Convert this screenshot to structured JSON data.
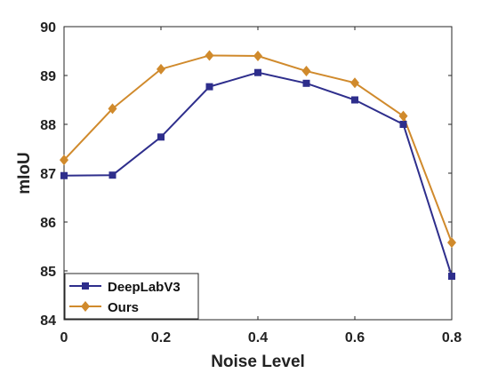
{
  "chart_data": {
    "type": "line",
    "xlabel": "Noise Level",
    "ylabel": "mIoU",
    "xlim": [
      0,
      0.8
    ],
    "ylim": [
      84,
      90
    ],
    "xticks": [
      "0",
      "0.2",
      "0.4",
      "0.6",
      "0.8"
    ],
    "yticks": [
      "84",
      "85",
      "86",
      "87",
      "88",
      "89",
      "90"
    ],
    "grid": false,
    "legend_position": "bottom-left",
    "x": [
      0,
      0.1,
      0.2,
      0.3,
      0.4,
      0.5,
      0.6,
      0.7,
      0.8
    ],
    "series": [
      {
        "name": "DeepLabV3",
        "color": "#2e2e8c",
        "marker": "square",
        "values": [
          86.95,
          86.96,
          87.74,
          88.77,
          89.06,
          88.84,
          88.5,
          88.0,
          84.89
        ]
      },
      {
        "name": "Ours",
        "color": "#d08a2c",
        "marker": "diamond",
        "values": [
          87.27,
          88.32,
          89.13,
          89.41,
          89.4,
          89.09,
          88.85,
          88.17,
          85.58
        ]
      }
    ]
  }
}
